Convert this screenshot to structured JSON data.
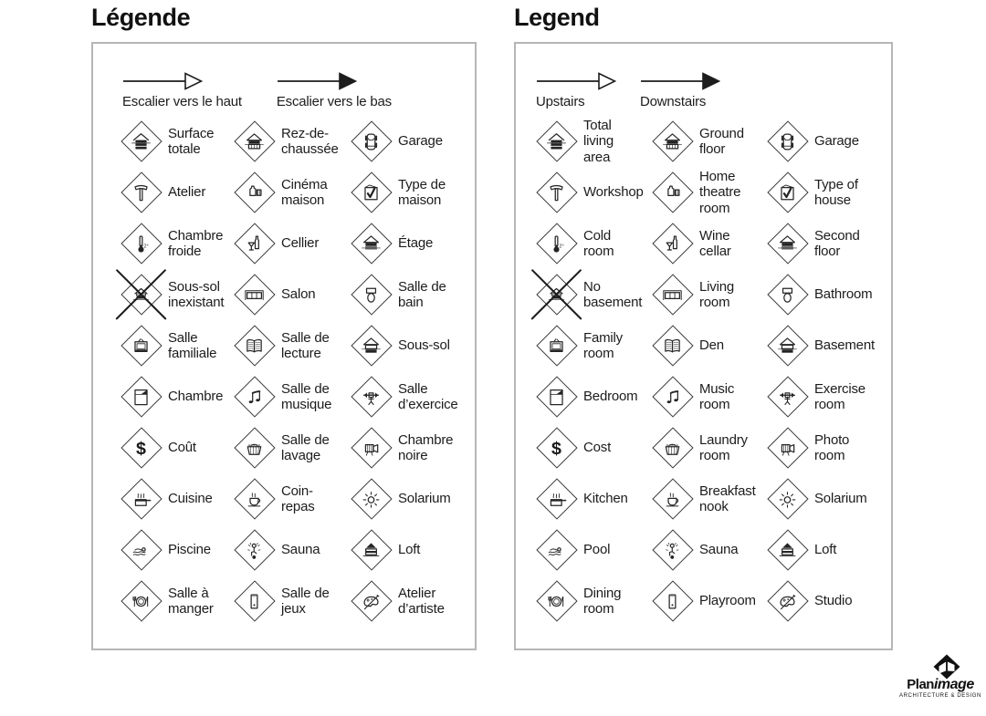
{
  "panels": [
    {
      "id": "fr",
      "title": "Légende",
      "arrows": [
        {
          "label": "Escalier vers le haut",
          "style": "outline"
        },
        {
          "label": "Escalier vers le bas",
          "style": "filled"
        }
      ],
      "items": [
        {
          "icon": "house-total",
          "label": "Surface\ntotale"
        },
        {
          "icon": "house-ground",
          "label": "Rez-de-\nchaussée"
        },
        {
          "icon": "car",
          "label": "Garage"
        },
        {
          "icon": "hammer",
          "label": "Atelier"
        },
        {
          "icon": "projector",
          "label": "Cinéma\nmaison"
        },
        {
          "icon": "checkbox",
          "label": "Type de\nmaison"
        },
        {
          "icon": "thermometer",
          "label": "Chambre\nfroide"
        },
        {
          "icon": "wine",
          "label": "Cellier"
        },
        {
          "icon": "house-second",
          "label": "Étage"
        },
        {
          "icon": "no-basement",
          "label": "Sous-sol\ninexistant"
        },
        {
          "icon": "sofa",
          "label": "Salon"
        },
        {
          "icon": "toilet",
          "label": "Salle de\nbain"
        },
        {
          "icon": "tv",
          "label": "Salle\nfamiliale"
        },
        {
          "icon": "book",
          "label": "Salle de\nlecture"
        },
        {
          "icon": "house-basement",
          "label": "Sous-sol"
        },
        {
          "icon": "bed",
          "label": "Chambre"
        },
        {
          "icon": "music-notes",
          "label": "Salle de\nmusique"
        },
        {
          "icon": "weights",
          "label": "Salle\nd’exercice"
        },
        {
          "icon": "dollar",
          "label": "Coût"
        },
        {
          "icon": "laundry-basket",
          "label": "Salle de\nlavage"
        },
        {
          "icon": "camera",
          "label": "Chambre\nnoire"
        },
        {
          "icon": "cooking-pot",
          "label": "Cuisine"
        },
        {
          "icon": "coffee-cup",
          "label": "Coin-\nrepas"
        },
        {
          "icon": "sun",
          "label": "Solarium"
        },
        {
          "icon": "swimmer",
          "label": "Piscine"
        },
        {
          "icon": "sauna-person",
          "label": "Sauna"
        },
        {
          "icon": "loft-house",
          "label": "Loft"
        },
        {
          "icon": "dining-plate",
          "label": "Salle à\nmanger"
        },
        {
          "icon": "pool-table",
          "label": "Salle de\njeux"
        },
        {
          "icon": "palette",
          "label": "Atelier\nd’artiste"
        }
      ]
    },
    {
      "id": "en",
      "title": "Legend",
      "arrows": [
        {
          "label": "Upstairs",
          "style": "outline"
        },
        {
          "label": "Downstairs",
          "style": "filled"
        }
      ],
      "items": [
        {
          "icon": "house-total",
          "label": "Total\nliving\narea"
        },
        {
          "icon": "house-ground",
          "label": "Ground\nfloor"
        },
        {
          "icon": "car",
          "label": "Garage"
        },
        {
          "icon": "hammer",
          "label": "Workshop"
        },
        {
          "icon": "projector",
          "label": "Home\ntheatre\nroom"
        },
        {
          "icon": "checkbox",
          "label": "Type of\nhouse"
        },
        {
          "icon": "thermometer",
          "label": "Cold\nroom"
        },
        {
          "icon": "wine",
          "label": "Wine\ncellar"
        },
        {
          "icon": "house-second",
          "label": "Second\nfloor"
        },
        {
          "icon": "no-basement",
          "label": "No\nbasement"
        },
        {
          "icon": "sofa",
          "label": "Living\nroom"
        },
        {
          "icon": "toilet",
          "label": "Bathroom"
        },
        {
          "icon": "tv",
          "label": "Family\nroom"
        },
        {
          "icon": "book",
          "label": "Den"
        },
        {
          "icon": "house-basement",
          "label": "Basement"
        },
        {
          "icon": "bed",
          "label": "Bedroom"
        },
        {
          "icon": "music-notes",
          "label": "Music\nroom"
        },
        {
          "icon": "weights",
          "label": "Exercise\nroom"
        },
        {
          "icon": "dollar",
          "label": "Cost"
        },
        {
          "icon": "laundry-basket",
          "label": "Laundry\nroom"
        },
        {
          "icon": "camera",
          "label": "Photo\nroom"
        },
        {
          "icon": "cooking-pot",
          "label": "Kitchen"
        },
        {
          "icon": "coffee-cup",
          "label": "Breakfast\nnook"
        },
        {
          "icon": "sun",
          "label": "Solarium"
        },
        {
          "icon": "swimmer",
          "label": "Pool"
        },
        {
          "icon": "sauna-person",
          "label": "Sauna"
        },
        {
          "icon": "loft-house",
          "label": "Loft"
        },
        {
          "icon": "dining-plate",
          "label": "Dining\nroom"
        },
        {
          "icon": "pool-table",
          "label": "Playroom"
        },
        {
          "icon": "palette",
          "label": "Studio"
        }
      ]
    }
  ],
  "logo": {
    "part1": "Plan",
    "part2": "image",
    "tagline": "ARCHITECTURE & DESIGN"
  },
  "colors": {
    "panel_border": "#b6b6b6",
    "ink": "#1c1c1c",
    "background": "#ffffff"
  }
}
